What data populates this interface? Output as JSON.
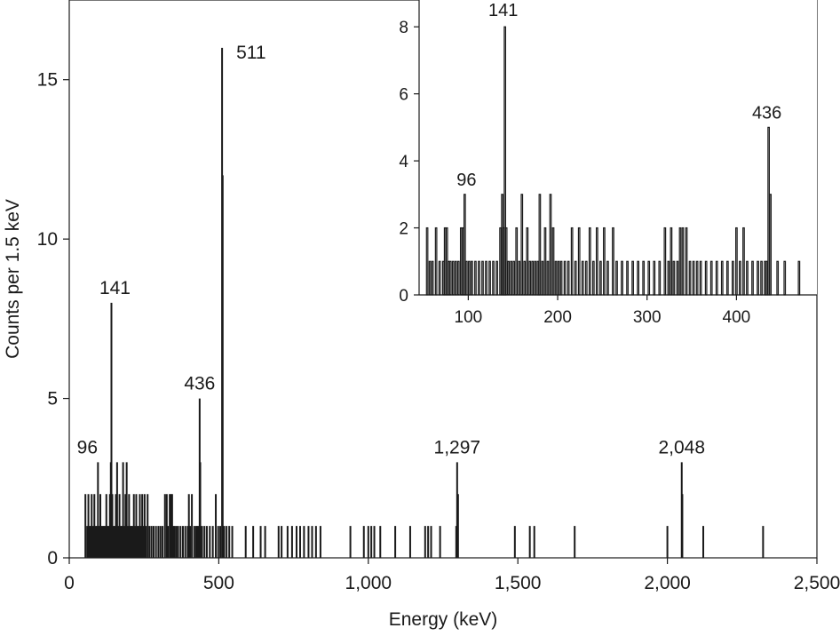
{
  "chart_data": [
    {
      "type": "bar",
      "role": "main",
      "xlabel": "Energy (keV)",
      "ylabel": "Counts per 1.5 keV",
      "xlim": [
        0,
        2500
      ],
      "ylim": [
        0,
        17.5
      ],
      "xticks": [
        0,
        500,
        1000,
        1500,
        2000,
        2500
      ],
      "xtick_labels": [
        "0",
        "500",
        "1,000",
        "1,500",
        "2,000",
        "2,500"
      ],
      "yticks": [
        0,
        5,
        10,
        15
      ],
      "ytick_labels": [
        "0",
        "5",
        "10",
        "15"
      ],
      "bin_width": 1.5,
      "points": [
        {
          "x": 54,
          "y": 2
        },
        {
          "x": 60,
          "y": 1
        },
        {
          "x": 64,
          "y": 2
        },
        {
          "x": 68,
          "y": 1
        },
        {
          "x": 72,
          "y": 1
        },
        {
          "x": 75,
          "y": 2
        },
        {
          "x": 80,
          "y": 1
        },
        {
          "x": 84,
          "y": 2
        },
        {
          "x": 88,
          "y": 1
        },
        {
          "x": 92,
          "y": 1
        },
        {
          "x": 96,
          "y": 3
        },
        {
          "x": 100,
          "y": 1
        },
        {
          "x": 104,
          "y": 2
        },
        {
          "x": 108,
          "y": 1
        },
        {
          "x": 112,
          "y": 1
        },
        {
          "x": 116,
          "y": 1
        },
        {
          "x": 120,
          "y": 1
        },
        {
          "x": 124,
          "y": 2
        },
        {
          "x": 128,
          "y": 1
        },
        {
          "x": 132,
          "y": 1
        },
        {
          "x": 136,
          "y": 2
        },
        {
          "x": 139,
          "y": 3
        },
        {
          "x": 141,
          "y": 8
        },
        {
          "x": 144,
          "y": 2
        },
        {
          "x": 148,
          "y": 1
        },
        {
          "x": 152,
          "y": 1
        },
        {
          "x": 156,
          "y": 2
        },
        {
          "x": 160,
          "y": 3
        },
        {
          "x": 164,
          "y": 1
        },
        {
          "x": 168,
          "y": 2
        },
        {
          "x": 172,
          "y": 1
        },
        {
          "x": 176,
          "y": 1
        },
        {
          "x": 180,
          "y": 3
        },
        {
          "x": 184,
          "y": 1
        },
        {
          "x": 188,
          "y": 2
        },
        {
          "x": 192,
          "y": 3
        },
        {
          "x": 196,
          "y": 1
        },
        {
          "x": 200,
          "y": 2
        },
        {
          "x": 204,
          "y": 1
        },
        {
          "x": 208,
          "y": 1
        },
        {
          "x": 212,
          "y": 1
        },
        {
          "x": 216,
          "y": 2
        },
        {
          "x": 220,
          "y": 1
        },
        {
          "x": 224,
          "y": 2
        },
        {
          "x": 228,
          "y": 1
        },
        {
          "x": 232,
          "y": 1
        },
        {
          "x": 236,
          "y": 2
        },
        {
          "x": 240,
          "y": 1
        },
        {
          "x": 244,
          "y": 2
        },
        {
          "x": 248,
          "y": 1
        },
        {
          "x": 252,
          "y": 2
        },
        {
          "x": 256,
          "y": 1
        },
        {
          "x": 262,
          "y": 2
        },
        {
          "x": 268,
          "y": 1
        },
        {
          "x": 275,
          "y": 1
        },
        {
          "x": 282,
          "y": 1
        },
        {
          "x": 290,
          "y": 1
        },
        {
          "x": 298,
          "y": 1
        },
        {
          "x": 305,
          "y": 1
        },
        {
          "x": 312,
          "y": 1
        },
        {
          "x": 320,
          "y": 2
        },
        {
          "x": 326,
          "y": 2
        },
        {
          "x": 330,
          "y": 1
        },
        {
          "x": 336,
          "y": 2
        },
        {
          "x": 340,
          "y": 2
        },
        {
          "x": 344,
          "y": 2
        },
        {
          "x": 348,
          "y": 1
        },
        {
          "x": 352,
          "y": 1
        },
        {
          "x": 358,
          "y": 1
        },
        {
          "x": 364,
          "y": 1
        },
        {
          "x": 372,
          "y": 1
        },
        {
          "x": 380,
          "y": 1
        },
        {
          "x": 388,
          "y": 1
        },
        {
          "x": 396,
          "y": 1
        },
        {
          "x": 400,
          "y": 2
        },
        {
          "x": 404,
          "y": 1
        },
        {
          "x": 410,
          "y": 2
        },
        {
          "x": 418,
          "y": 1
        },
        {
          "x": 424,
          "y": 1
        },
        {
          "x": 428,
          "y": 1
        },
        {
          "x": 432,
          "y": 1
        },
        {
          "x": 436,
          "y": 5
        },
        {
          "x": 438,
          "y": 3
        },
        {
          "x": 444,
          "y": 1
        },
        {
          "x": 452,
          "y": 1
        },
        {
          "x": 460,
          "y": 1
        },
        {
          "x": 470,
          "y": 1
        },
        {
          "x": 480,
          "y": 1
        },
        {
          "x": 490,
          "y": 2
        },
        {
          "x": 498,
          "y": 1
        },
        {
          "x": 505,
          "y": 1
        },
        {
          "x": 511,
          "y": 16
        },
        {
          "x": 513,
          "y": 12
        },
        {
          "x": 518,
          "y": 1
        },
        {
          "x": 526,
          "y": 1
        },
        {
          "x": 535,
          "y": 1
        },
        {
          "x": 545,
          "y": 1
        },
        {
          "x": 590,
          "y": 1
        },
        {
          "x": 615,
          "y": 1
        },
        {
          "x": 640,
          "y": 1
        },
        {
          "x": 655,
          "y": 1
        },
        {
          "x": 700,
          "y": 1
        },
        {
          "x": 710,
          "y": 1
        },
        {
          "x": 730,
          "y": 1
        },
        {
          "x": 745,
          "y": 1
        },
        {
          "x": 760,
          "y": 1
        },
        {
          "x": 772,
          "y": 1
        },
        {
          "x": 785,
          "y": 1
        },
        {
          "x": 800,
          "y": 1
        },
        {
          "x": 812,
          "y": 1
        },
        {
          "x": 825,
          "y": 1
        },
        {
          "x": 840,
          "y": 1
        },
        {
          "x": 940,
          "y": 1
        },
        {
          "x": 985,
          "y": 1
        },
        {
          "x": 1000,
          "y": 1
        },
        {
          "x": 1010,
          "y": 1
        },
        {
          "x": 1020,
          "y": 1
        },
        {
          "x": 1040,
          "y": 1
        },
        {
          "x": 1090,
          "y": 1
        },
        {
          "x": 1140,
          "y": 1
        },
        {
          "x": 1190,
          "y": 1
        },
        {
          "x": 1200,
          "y": 1
        },
        {
          "x": 1210,
          "y": 1
        },
        {
          "x": 1240,
          "y": 1
        },
        {
          "x": 1294,
          "y": 1
        },
        {
          "x": 1297,
          "y": 3
        },
        {
          "x": 1300,
          "y": 2
        },
        {
          "x": 1490,
          "y": 1
        },
        {
          "x": 1540,
          "y": 1
        },
        {
          "x": 1555,
          "y": 1
        },
        {
          "x": 1690,
          "y": 1
        },
        {
          "x": 2000,
          "y": 1
        },
        {
          "x": 2048,
          "y": 3
        },
        {
          "x": 2050,
          "y": 2
        },
        {
          "x": 2120,
          "y": 1
        },
        {
          "x": 2320,
          "y": 1
        }
      ],
      "annotations": [
        {
          "text": "96",
          "x": 96,
          "y": 3
        },
        {
          "text": "141",
          "x": 141,
          "y": 8
        },
        {
          "text": "436",
          "x": 436,
          "y": 5
        },
        {
          "text": "511",
          "x": 511,
          "y": 16
        },
        {
          "text": "1,297",
          "x": 1297,
          "y": 3
        },
        {
          "text": "2,048",
          "x": 2048,
          "y": 3
        }
      ]
    },
    {
      "type": "bar",
      "role": "inset",
      "xlabel": "",
      "ylabel": "",
      "xlim": [
        45,
        490
      ],
      "ylim": [
        0,
        8.8
      ],
      "xticks": [
        100,
        200,
        300,
        400
      ],
      "xtick_labels": [
        "100",
        "200",
        "300",
        "400"
      ],
      "yticks": [
        0,
        2,
        4,
        6,
        8
      ],
      "ytick_labels": [
        "0",
        "2",
        "4",
        "6",
        "8"
      ],
      "bin_width": 1.5,
      "points": [
        {
          "x": 54,
          "y": 2
        },
        {
          "x": 57,
          "y": 1
        },
        {
          "x": 60,
          "y": 1
        },
        {
          "x": 64,
          "y": 2
        },
        {
          "x": 68,
          "y": 1
        },
        {
          "x": 72,
          "y": 1
        },
        {
          "x": 74,
          "y": 2
        },
        {
          "x": 76,
          "y": 2
        },
        {
          "x": 78,
          "y": 1
        },
        {
          "x": 80,
          "y": 1
        },
        {
          "x": 83,
          "y": 1
        },
        {
          "x": 86,
          "y": 1
        },
        {
          "x": 89,
          "y": 1
        },
        {
          "x": 92,
          "y": 2
        },
        {
          "x": 94,
          "y": 2
        },
        {
          "x": 96,
          "y": 3
        },
        {
          "x": 98,
          "y": 1
        },
        {
          "x": 101,
          "y": 1
        },
        {
          "x": 104,
          "y": 1
        },
        {
          "x": 108,
          "y": 1
        },
        {
          "x": 112,
          "y": 1
        },
        {
          "x": 116,
          "y": 1
        },
        {
          "x": 120,
          "y": 1
        },
        {
          "x": 124,
          "y": 1
        },
        {
          "x": 128,
          "y": 1
        },
        {
          "x": 132,
          "y": 1
        },
        {
          "x": 136,
          "y": 2
        },
        {
          "x": 138,
          "y": 3
        },
        {
          "x": 139.5,
          "y": 2
        },
        {
          "x": 141,
          "y": 8
        },
        {
          "x": 142.5,
          "y": 2
        },
        {
          "x": 145,
          "y": 1
        },
        {
          "x": 148,
          "y": 1
        },
        {
          "x": 151,
          "y": 1
        },
        {
          "x": 154,
          "y": 2
        },
        {
          "x": 157,
          "y": 1
        },
        {
          "x": 160,
          "y": 3
        },
        {
          "x": 163,
          "y": 1
        },
        {
          "x": 166,
          "y": 2
        },
        {
          "x": 169,
          "y": 1
        },
        {
          "x": 172,
          "y": 1
        },
        {
          "x": 175,
          "y": 1
        },
        {
          "x": 178,
          "y": 1
        },
        {
          "x": 180,
          "y": 3
        },
        {
          "x": 183,
          "y": 1
        },
        {
          "x": 186,
          "y": 2
        },
        {
          "x": 189,
          "y": 1
        },
        {
          "x": 192,
          "y": 3
        },
        {
          "x": 195,
          "y": 2
        },
        {
          "x": 198,
          "y": 1
        },
        {
          "x": 201,
          "y": 1
        },
        {
          "x": 204,
          "y": 1
        },
        {
          "x": 208,
          "y": 1
        },
        {
          "x": 212,
          "y": 1
        },
        {
          "x": 216,
          "y": 2
        },
        {
          "x": 220,
          "y": 1
        },
        {
          "x": 224,
          "y": 2
        },
        {
          "x": 228,
          "y": 1
        },
        {
          "x": 232,
          "y": 1
        },
        {
          "x": 236,
          "y": 2
        },
        {
          "x": 240,
          "y": 1
        },
        {
          "x": 244,
          "y": 2
        },
        {
          "x": 248,
          "y": 1
        },
        {
          "x": 252,
          "y": 2
        },
        {
          "x": 256,
          "y": 1
        },
        {
          "x": 262,
          "y": 2
        },
        {
          "x": 266,
          "y": 1
        },
        {
          "x": 272,
          "y": 1
        },
        {
          "x": 278,
          "y": 1
        },
        {
          "x": 284,
          "y": 1
        },
        {
          "x": 290,
          "y": 1
        },
        {
          "x": 296,
          "y": 1
        },
        {
          "x": 302,
          "y": 1
        },
        {
          "x": 308,
          "y": 1
        },
        {
          "x": 314,
          "y": 1
        },
        {
          "x": 320,
          "y": 2
        },
        {
          "x": 324,
          "y": 1
        },
        {
          "x": 327,
          "y": 2
        },
        {
          "x": 330,
          "y": 1
        },
        {
          "x": 334,
          "y": 1
        },
        {
          "x": 337,
          "y": 2
        },
        {
          "x": 340,
          "y": 2
        },
        {
          "x": 344,
          "y": 2
        },
        {
          "x": 348,
          "y": 1
        },
        {
          "x": 352,
          "y": 1
        },
        {
          "x": 356,
          "y": 1
        },
        {
          "x": 360,
          "y": 1
        },
        {
          "x": 366,
          "y": 1
        },
        {
          "x": 372,
          "y": 1
        },
        {
          "x": 378,
          "y": 1
        },
        {
          "x": 384,
          "y": 1
        },
        {
          "x": 390,
          "y": 1
        },
        {
          "x": 396,
          "y": 1
        },
        {
          "x": 400,
          "y": 2
        },
        {
          "x": 404,
          "y": 1
        },
        {
          "x": 408,
          "y": 2
        },
        {
          "x": 412,
          "y": 1
        },
        {
          "x": 418,
          "y": 1
        },
        {
          "x": 424,
          "y": 1
        },
        {
          "x": 428,
          "y": 1
        },
        {
          "x": 432,
          "y": 1
        },
        {
          "x": 434,
          "y": 1
        },
        {
          "x": 436,
          "y": 5
        },
        {
          "x": 438,
          "y": 3
        },
        {
          "x": 446,
          "y": 1
        },
        {
          "x": 454,
          "y": 1
        },
        {
          "x": 470,
          "y": 1
        }
      ],
      "annotations": [
        {
          "text": "96",
          "x": 96,
          "y": 3
        },
        {
          "text": "141",
          "x": 141,
          "y": 8
        },
        {
          "text": "436",
          "x": 436,
          "y": 5
        }
      ]
    }
  ]
}
